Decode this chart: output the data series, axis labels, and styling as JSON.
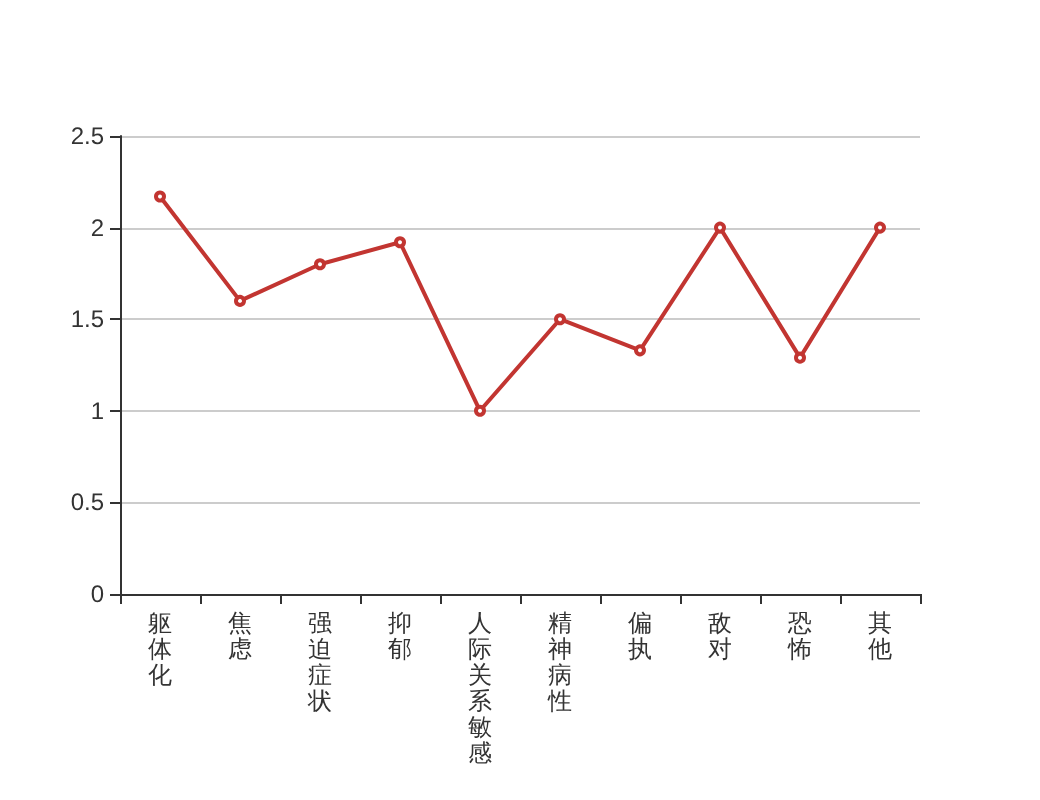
{
  "chart_data": {
    "type": "line",
    "categories": [
      "躯体化",
      "焦虑",
      "强迫症状",
      "抑郁",
      "人际关系敏感",
      "精神病性",
      "偏执",
      "敌对",
      "恐怖",
      "其他"
    ],
    "series": [
      {
        "color": "#c23531",
        "values": [
          2.17,
          1.6,
          1.8,
          1.92,
          1.0,
          1.5,
          1.33,
          2.0,
          1.29,
          2.0
        ]
      }
    ],
    "ylim": [
      0,
      2.5
    ],
    "yticks": [
      0,
      0.5,
      1,
      1.5,
      2,
      2.5
    ],
    "grid": "y",
    "marker": "circle",
    "line_style": "solid"
  }
}
